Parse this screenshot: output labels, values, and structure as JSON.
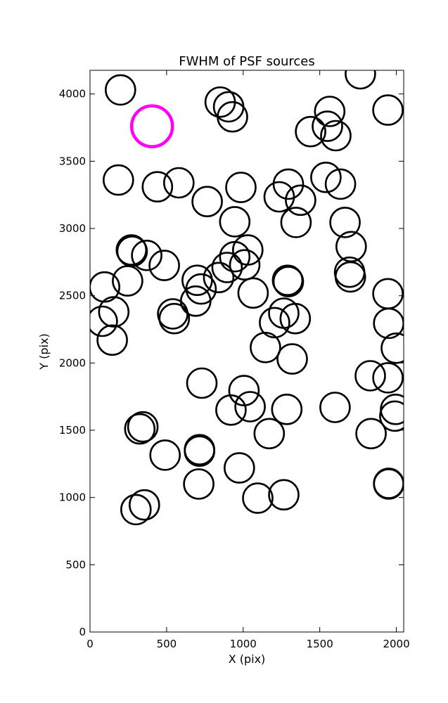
{
  "chart_data": {
    "type": "scatter",
    "title": "FWHM of PSF sources",
    "xlabel": "X (pix)",
    "ylabel": "Y (pix)",
    "xlim": [
      0,
      2048
    ],
    "ylim": [
      0,
      4176
    ],
    "xticks": [
      0,
      500,
      1000,
      1500,
      2000
    ],
    "yticks": [
      0,
      500,
      1000,
      1500,
      2000,
      2500,
      3000,
      3500,
      4000
    ],
    "grid": false,
    "marker": "circle-outline",
    "colors": {
      "source": "#000000",
      "highlight": "#ff00ff"
    },
    "highlight": {
      "x": 405,
      "y": 3760
    },
    "series": [
      {
        "points": [
          [
            199,
            4030
          ],
          [
            850,
            3940
          ],
          [
            905,
            3905
          ],
          [
            930,
            3830
          ],
          [
            1565,
            3870
          ],
          [
            1945,
            3880
          ],
          [
            1765,
            4150
          ],
          [
            1440,
            3720
          ],
          [
            1550,
            3760
          ],
          [
            1605,
            3690
          ],
          [
            185,
            3360
          ],
          [
            440,
            3310
          ],
          [
            580,
            3340
          ],
          [
            765,
            3200
          ],
          [
            985,
            3305
          ],
          [
            1235,
            3235
          ],
          [
            1295,
            3330
          ],
          [
            1375,
            3210
          ],
          [
            1540,
            3380
          ],
          [
            1635,
            3330
          ],
          [
            945,
            3050
          ],
          [
            1345,
            3045
          ],
          [
            1665,
            3045
          ],
          [
            1705,
            2865
          ],
          [
            270,
            2840
          ],
          [
            275,
            2830
          ],
          [
            370,
            2800
          ],
          [
            485,
            2725
          ],
          [
            945,
            2790
          ],
          [
            1030,
            2840
          ],
          [
            1010,
            2730
          ],
          [
            895,
            2710
          ],
          [
            840,
            2635
          ],
          [
            700,
            2615
          ],
          [
            725,
            2550
          ],
          [
            690,
            2460
          ],
          [
            245,
            2610
          ],
          [
            95,
            2565
          ],
          [
            155,
            2380
          ],
          [
            1065,
            2520
          ],
          [
            1290,
            2615
          ],
          [
            1295,
            2605
          ],
          [
            1695,
            2675
          ],
          [
            1700,
            2640
          ],
          [
            1945,
            2515
          ],
          [
            540,
            2365
          ],
          [
            550,
            2330
          ],
          [
            80,
            2310
          ],
          [
            145,
            2170
          ],
          [
            1265,
            2370
          ],
          [
            1340,
            2330
          ],
          [
            1205,
            2300
          ],
          [
            1145,
            2115
          ],
          [
            1320,
            2030
          ],
          [
            1950,
            2295
          ],
          [
            2000,
            2110
          ],
          [
            730,
            1850
          ],
          [
            1005,
            1795
          ],
          [
            920,
            1650
          ],
          [
            1045,
            1675
          ],
          [
            1285,
            1655
          ],
          [
            1600,
            1670
          ],
          [
            1830,
            1905
          ],
          [
            1945,
            1890
          ],
          [
            1995,
            1655
          ],
          [
            1990,
            1605
          ],
          [
            325,
            1510
          ],
          [
            345,
            1525
          ],
          [
            1170,
            1475
          ],
          [
            1835,
            1475
          ],
          [
            490,
            1315
          ],
          [
            715,
            1355
          ],
          [
            715,
            1345
          ],
          [
            975,
            1220
          ],
          [
            710,
            1100
          ],
          [
            1095,
            995
          ],
          [
            1265,
            1020
          ],
          [
            1950,
            1105
          ],
          [
            1950,
            1100
          ],
          [
            300,
            910
          ],
          [
            355,
            945
          ]
        ]
      }
    ]
  }
}
